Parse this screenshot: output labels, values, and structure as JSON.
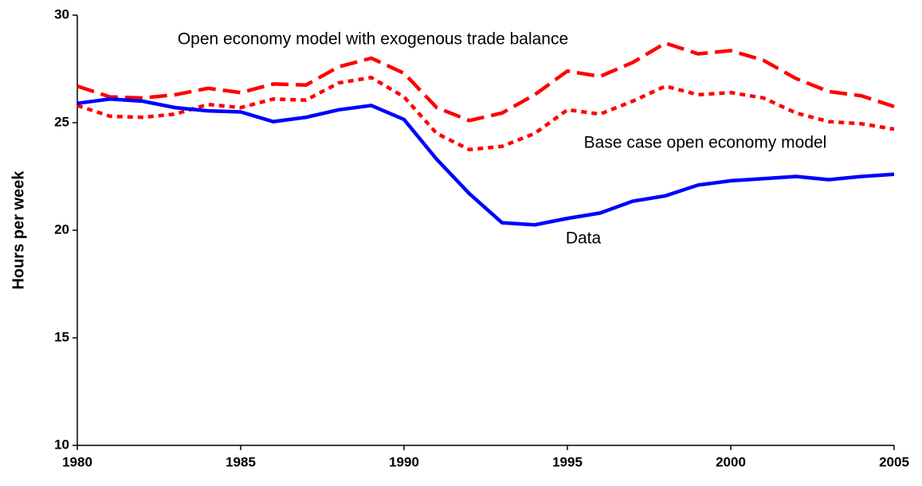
{
  "chart_data": {
    "type": "line",
    "y_label": "Hours per week",
    "x": [
      1980,
      1981,
      1982,
      1983,
      1984,
      1985,
      1986,
      1987,
      1988,
      1989,
      1990,
      1991,
      1992,
      1993,
      1994,
      1995,
      1996,
      1997,
      1998,
      1999,
      2000,
      2001,
      2002,
      2003,
      2004,
      2005
    ],
    "series": [
      {
        "name": "Open economy model with exogenous trade balance",
        "color": "#ff0000",
        "dash": "dashed",
        "values": [
          26.7,
          26.2,
          26.15,
          26.3,
          26.6,
          26.4,
          26.8,
          26.75,
          27.6,
          28.0,
          27.3,
          25.7,
          25.1,
          25.45,
          26.3,
          27.4,
          27.15,
          27.8,
          28.7,
          28.2,
          28.35,
          27.9,
          27.05,
          26.45,
          26.25,
          25.75
        ]
      },
      {
        "name": "Base case open economy model",
        "color": "#ff0000",
        "dash": "dotted",
        "values": [
          25.8,
          25.3,
          25.25,
          25.4,
          25.85,
          25.7,
          26.1,
          26.05,
          26.85,
          27.1,
          26.2,
          24.5,
          23.75,
          23.9,
          24.5,
          25.6,
          25.4,
          26.0,
          26.7,
          26.3,
          26.4,
          26.15,
          25.45,
          25.05,
          24.95,
          24.7
        ]
      },
      {
        "name": "Data",
        "color": "#0000ff",
        "dash": "solid",
        "values": [
          25.9,
          26.1,
          26.0,
          25.7,
          25.55,
          25.5,
          25.05,
          25.25,
          25.6,
          25.8,
          25.15,
          23.3,
          21.7,
          20.35,
          20.25,
          20.55,
          20.8,
          21.35,
          21.6,
          22.1,
          22.3,
          22.4,
          22.5,
          22.35,
          22.5,
          22.6
        ]
      }
    ],
    "xlim": [
      1980,
      2005
    ],
    "xticks": [
      1980,
      1985,
      1990,
      1995,
      2000,
      2005
    ],
    "ylim": [
      10,
      30
    ],
    "yticks": [
      10,
      15,
      20,
      25,
      30
    ],
    "grid": false
  }
}
